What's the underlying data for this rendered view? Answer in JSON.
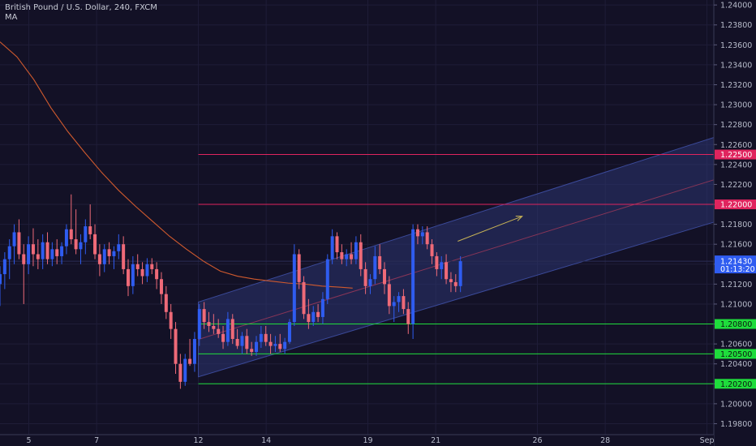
{
  "header": {
    "symbol": "British Pound / U.S. Dollar, 240, FXCM",
    "indicator": "MA"
  },
  "colors": {
    "background": "#131126",
    "grid": "#1f1d38",
    "bull": "#2f5cf0",
    "bear": "#ee6a78",
    "ma": "#d05a2e",
    "resistance": "#e0245e",
    "support": "#1fdc3c",
    "channel_fill": "#2c3470",
    "axis_text": "#b8bccb",
    "crosshair": "#2a2d55",
    "arrow": "#c9b456"
  },
  "chart_data": {
    "type": "candlestick",
    "x_labels": [
      "5",
      "7",
      "12",
      "14",
      "19",
      "21",
      "26",
      "28",
      "Sep"
    ],
    "y_ticks": [
      "1.24000",
      "1.23800",
      "1.23600",
      "1.23400",
      "1.23200",
      "1.23000",
      "1.22800",
      "1.22600",
      "1.22400",
      "1.22200",
      "1.22000",
      "1.21800",
      "1.21600",
      "1.21400",
      "1.21200",
      "1.21000",
      "1.20800",
      "1.20600",
      "1.20400",
      "1.20200",
      "1.20000",
      "1.19800"
    ],
    "ylim": [
      1.1969,
      1.2405
    ],
    "horizontal_levels": [
      {
        "price": 1.225,
        "label": "1.22500",
        "kind": "resistance"
      },
      {
        "price": 1.22,
        "label": "1.22000",
        "kind": "resistance"
      },
      {
        "price": 1.208,
        "label": "1.20800",
        "kind": "support"
      },
      {
        "price": 1.205,
        "label": "1.20500",
        "kind": "support"
      },
      {
        "price": 1.202,
        "label": "1.20200",
        "kind": "support"
      }
    ],
    "current_price": {
      "price": 1.2143,
      "label": "1.21430",
      "countdown": "01:13:20"
    },
    "channel": {
      "start": {
        "date": "12",
        "upper": 1.2102,
        "lower": 1.2027
      },
      "end": {
        "date": "Sep",
        "upper": 1.2268,
        "lower": 1.2183
      }
    },
    "ma": [
      {
        "d": 0,
        "v": 1.2363
      },
      {
        "d": 0.5,
        "v": 1.2348
      },
      {
        "d": 1,
        "v": 1.2325
      },
      {
        "d": 1.5,
        "v": 1.2297
      },
      {
        "d": 2,
        "v": 1.2273
      },
      {
        "d": 2.5,
        "v": 1.2252
      },
      {
        "d": 3,
        "v": 1.2232
      },
      {
        "d": 3.5,
        "v": 1.2214
      },
      {
        "d": 4,
        "v": 1.2198
      },
      {
        "d": 4.5,
        "v": 1.2183
      },
      {
        "d": 5,
        "v": 1.2168
      },
      {
        "d": 5.5,
        "v": 1.2155
      },
      {
        "d": 6,
        "v": 1.2143
      },
      {
        "d": 6.5,
        "v": 1.2133
      },
      {
        "d": 7,
        "v": 1.2128
      },
      {
        "d": 7.5,
        "v": 1.2125
      },
      {
        "d": 8,
        "v": 1.2123
      },
      {
        "d": 8.5,
        "v": 1.2121
      },
      {
        "d": 9,
        "v": 1.212
      },
      {
        "d": 9.5,
        "v": 1.2118
      },
      {
        "d": 10,
        "v": 1.2117
      },
      {
        "d": 10.4,
        "v": 1.2116
      }
    ],
    "candles": [
      {
        "d": 0.0,
        "o": 1.212,
        "h": 1.2138,
        "l": 1.2098,
        "c": 1.213
      },
      {
        "d": 0.14,
        "o": 1.213,
        "h": 1.2152,
        "l": 1.2115,
        "c": 1.2145
      },
      {
        "d": 0.28,
        "o": 1.2145,
        "h": 1.2165,
        "l": 1.2125,
        "c": 1.2158
      },
      {
        "d": 0.42,
        "o": 1.2158,
        "h": 1.218,
        "l": 1.214,
        "c": 1.2172
      },
      {
        "d": 0.56,
        "o": 1.2172,
        "h": 1.2185,
        "l": 1.2145,
        "c": 1.215
      },
      {
        "d": 0.7,
        "o": 1.215,
        "h": 1.216,
        "l": 1.21,
        "c": 1.214
      },
      {
        "d": 0.84,
        "o": 1.214,
        "h": 1.2168,
        "l": 1.213,
        "c": 1.216
      },
      {
        "d": 0.98,
        "o": 1.216,
        "h": 1.2176,
        "l": 1.2138,
        "c": 1.215
      },
      {
        "d": 1.12,
        "o": 1.215,
        "h": 1.2165,
        "l": 1.2135,
        "c": 1.2145
      },
      {
        "d": 1.26,
        "o": 1.2145,
        "h": 1.217,
        "l": 1.2135,
        "c": 1.2162
      },
      {
        "d": 1.4,
        "o": 1.2162,
        "h": 1.2172,
        "l": 1.214,
        "c": 1.2145
      },
      {
        "d": 1.54,
        "o": 1.2145,
        "h": 1.2162,
        "l": 1.2138,
        "c": 1.2155
      },
      {
        "d": 1.68,
        "o": 1.2155,
        "h": 1.2165,
        "l": 1.214,
        "c": 1.2148
      },
      {
        "d": 1.82,
        "o": 1.2148,
        "h": 1.2162,
        "l": 1.214,
        "c": 1.2158
      },
      {
        "d": 1.96,
        "o": 1.2158,
        "h": 1.218,
        "l": 1.215,
        "c": 1.2175
      },
      {
        "d": 2.1,
        "o": 1.2175,
        "h": 1.221,
        "l": 1.216,
        "c": 1.2165
      },
      {
        "d": 2.24,
        "o": 1.2165,
        "h": 1.2195,
        "l": 1.215,
        "c": 1.2155
      },
      {
        "d": 2.38,
        "o": 1.2155,
        "h": 1.217,
        "l": 1.214,
        "c": 1.2162
      },
      {
        "d": 2.52,
        "o": 1.2162,
        "h": 1.2185,
        "l": 1.215,
        "c": 1.2178
      },
      {
        "d": 2.66,
        "o": 1.2178,
        "h": 1.22,
        "l": 1.2165,
        "c": 1.217
      },
      {
        "d": 2.8,
        "o": 1.217,
        "h": 1.218,
        "l": 1.2145,
        "c": 1.215
      },
      {
        "d": 2.94,
        "o": 1.215,
        "h": 1.216,
        "l": 1.2128,
        "c": 1.214
      },
      {
        "d": 3.08,
        "o": 1.214,
        "h": 1.216,
        "l": 1.2132,
        "c": 1.2155
      },
      {
        "d": 3.22,
        "o": 1.2155,
        "h": 1.2162,
        "l": 1.214,
        "c": 1.2148
      },
      {
        "d": 3.36,
        "o": 1.2148,
        "h": 1.2158,
        "l": 1.2135,
        "c": 1.2153
      },
      {
        "d": 3.5,
        "o": 1.2153,
        "h": 1.217,
        "l": 1.2145,
        "c": 1.216
      },
      {
        "d": 3.64,
        "o": 1.216,
        "h": 1.2168,
        "l": 1.213,
        "c": 1.2135
      },
      {
        "d": 3.78,
        "o": 1.2135,
        "h": 1.2145,
        "l": 1.2108,
        "c": 1.2118
      },
      {
        "d": 3.92,
        "o": 1.2118,
        "h": 1.2148,
        "l": 1.211,
        "c": 1.214
      },
      {
        "d": 4.06,
        "o": 1.214,
        "h": 1.215,
        "l": 1.2128,
        "c": 1.2135
      },
      {
        "d": 4.2,
        "o": 1.2135,
        "h": 1.2142,
        "l": 1.212,
        "c": 1.2128
      },
      {
        "d": 4.34,
        "o": 1.2128,
        "h": 1.2146,
        "l": 1.2122,
        "c": 1.214
      },
      {
        "d": 4.48,
        "o": 1.214,
        "h": 1.2146,
        "l": 1.213,
        "c": 1.2135
      },
      {
        "d": 4.62,
        "o": 1.2135,
        "h": 1.2142,
        "l": 1.2115,
        "c": 1.2125
      },
      {
        "d": 4.76,
        "o": 1.2125,
        "h": 1.2132,
        "l": 1.21,
        "c": 1.211
      },
      {
        "d": 4.9,
        "o": 1.211,
        "h": 1.2118,
        "l": 1.2085,
        "c": 1.2092
      },
      {
        "d": 5.04,
        "o": 1.2092,
        "h": 1.21,
        "l": 1.2065,
        "c": 1.2075
      },
      {
        "d": 5.18,
        "o": 1.2075,
        "h": 1.2082,
        "l": 1.203,
        "c": 1.204
      },
      {
        "d": 5.32,
        "o": 1.204,
        "h": 1.205,
        "l": 1.2015,
        "c": 1.2022
      },
      {
        "d": 5.46,
        "o": 1.2022,
        "h": 1.205,
        "l": 1.2018,
        "c": 1.2045
      },
      {
        "d": 5.6,
        "o": 1.2045,
        "h": 1.2065,
        "l": 1.2038,
        "c": 1.204
      },
      {
        "d": 5.74,
        "o": 1.204,
        "h": 1.2072,
        "l": 1.2032,
        "c": 1.2065
      },
      {
        "d": 5.88,
        "o": 1.2065,
        "h": 1.21,
        "l": 1.2058,
        "c": 1.2095
      },
      {
        "d": 6.02,
        "o": 1.2095,
        "h": 1.2102,
        "l": 1.2075,
        "c": 1.2082
      },
      {
        "d": 6.16,
        "o": 1.2082,
        "h": 1.2092,
        "l": 1.2072,
        "c": 1.2078
      },
      {
        "d": 6.3,
        "o": 1.2078,
        "h": 1.209,
        "l": 1.207,
        "c": 1.2075
      },
      {
        "d": 6.44,
        "o": 1.2075,
        "h": 1.2085,
        "l": 1.2066,
        "c": 1.207
      },
      {
        "d": 6.58,
        "o": 1.207,
        "h": 1.2078,
        "l": 1.2055,
        "c": 1.2062
      },
      {
        "d": 6.72,
        "o": 1.2062,
        "h": 1.2092,
        "l": 1.2058,
        "c": 1.2085
      },
      {
        "d": 6.86,
        "o": 1.2085,
        "h": 1.209,
        "l": 1.206,
        "c": 1.2065
      },
      {
        "d": 7.0,
        "o": 1.2065,
        "h": 1.2075,
        "l": 1.2055,
        "c": 1.2058
      },
      {
        "d": 7.14,
        "o": 1.2058,
        "h": 1.2072,
        "l": 1.205,
        "c": 1.2068
      },
      {
        "d": 7.28,
        "o": 1.2068,
        "h": 1.2075,
        "l": 1.205,
        "c": 1.2055
      },
      {
        "d": 7.42,
        "o": 1.2055,
        "h": 1.2062,
        "l": 1.2048,
        "c": 1.2052
      },
      {
        "d": 7.56,
        "o": 1.2052,
        "h": 1.2068,
        "l": 1.2048,
        "c": 1.2062
      },
      {
        "d": 7.7,
        "o": 1.2062,
        "h": 1.2078,
        "l": 1.2056,
        "c": 1.207
      },
      {
        "d": 7.84,
        "o": 1.207,
        "h": 1.2078,
        "l": 1.2058,
        "c": 1.2062
      },
      {
        "d": 7.98,
        "o": 1.2062,
        "h": 1.207,
        "l": 1.205,
        "c": 1.2058
      },
      {
        "d": 8.12,
        "o": 1.2058,
        "h": 1.2068,
        "l": 1.2052,
        "c": 1.206
      },
      {
        "d": 8.26,
        "o": 1.206,
        "h": 1.207,
        "l": 1.2052,
        "c": 1.2055
      },
      {
        "d": 8.4,
        "o": 1.2055,
        "h": 1.2066,
        "l": 1.205,
        "c": 1.2062
      },
      {
        "d": 8.54,
        "o": 1.2062,
        "h": 1.2085,
        "l": 1.206,
        "c": 1.2082
      },
      {
        "d": 8.68,
        "o": 1.2082,
        "h": 1.216,
        "l": 1.2078,
        "c": 1.215
      },
      {
        "d": 8.82,
        "o": 1.215,
        "h": 1.2155,
        "l": 1.2115,
        "c": 1.2122
      },
      {
        "d": 8.96,
        "o": 1.2122,
        "h": 1.2128,
        "l": 1.2085,
        "c": 1.209
      },
      {
        "d": 9.1,
        "o": 1.209,
        "h": 1.2105,
        "l": 1.2075,
        "c": 1.2082
      },
      {
        "d": 9.24,
        "o": 1.2082,
        "h": 1.2098,
        "l": 1.2078,
        "c": 1.2092
      },
      {
        "d": 9.38,
        "o": 1.2092,
        "h": 1.21,
        "l": 1.2082,
        "c": 1.2087
      },
      {
        "d": 9.52,
        "o": 1.2087,
        "h": 1.2112,
        "l": 1.208,
        "c": 1.2105
      },
      {
        "d": 9.66,
        "o": 1.2105,
        "h": 1.215,
        "l": 1.21,
        "c": 1.2145
      },
      {
        "d": 9.8,
        "o": 1.2145,
        "h": 1.2175,
        "l": 1.214,
        "c": 1.2168
      },
      {
        "d": 9.94,
        "o": 1.2168,
        "h": 1.2172,
        "l": 1.2145,
        "c": 1.2152
      },
      {
        "d": 10.08,
        "o": 1.2152,
        "h": 1.216,
        "l": 1.214,
        "c": 1.2145
      },
      {
        "d": 10.22,
        "o": 1.2145,
        "h": 1.2155,
        "l": 1.2138,
        "c": 1.215
      },
      {
        "d": 10.36,
        "o": 1.215,
        "h": 1.2162,
        "l": 1.214,
        "c": 1.2145
      },
      {
        "d": 10.5,
        "o": 1.2145,
        "h": 1.2168,
        "l": 1.214,
        "c": 1.2162
      },
      {
        "d": 10.64,
        "o": 1.2162,
        "h": 1.217,
        "l": 1.2128,
        "c": 1.2135
      },
      {
        "d": 10.78,
        "o": 1.2135,
        "h": 1.2142,
        "l": 1.211,
        "c": 1.2118
      },
      {
        "d": 10.92,
        "o": 1.2118,
        "h": 1.213,
        "l": 1.211,
        "c": 1.2125
      },
      {
        "d": 11.06,
        "o": 1.2125,
        "h": 1.2158,
        "l": 1.212,
        "c": 1.2148
      },
      {
        "d": 11.2,
        "o": 1.2148,
        "h": 1.216,
        "l": 1.213,
        "c": 1.2135
      },
      {
        "d": 11.34,
        "o": 1.2135,
        "h": 1.2142,
        "l": 1.211,
        "c": 1.212
      },
      {
        "d": 11.48,
        "o": 1.212,
        "h": 1.2128,
        "l": 1.209,
        "c": 1.2098
      },
      {
        "d": 11.62,
        "o": 1.2098,
        "h": 1.2108,
        "l": 1.2082,
        "c": 1.2102
      },
      {
        "d": 11.76,
        "o": 1.2102,
        "h": 1.2112,
        "l": 1.2092,
        "c": 1.2108
      },
      {
        "d": 11.9,
        "o": 1.2108,
        "h": 1.2115,
        "l": 1.209,
        "c": 1.2095
      },
      {
        "d": 12.04,
        "o": 1.2095,
        "h": 1.2102,
        "l": 1.207,
        "c": 1.208
      },
      {
        "d": 12.18,
        "o": 1.208,
        "h": 1.218,
        "l": 1.2065,
        "c": 1.2175
      },
      {
        "d": 12.32,
        "o": 1.2175,
        "h": 1.218,
        "l": 1.216,
        "c": 1.2168
      },
      {
        "d": 12.46,
        "o": 1.2168,
        "h": 1.2178,
        "l": 1.216,
        "c": 1.2172
      },
      {
        "d": 12.6,
        "o": 1.2172,
        "h": 1.2178,
        "l": 1.2155,
        "c": 1.216
      },
      {
        "d": 12.74,
        "o": 1.216,
        "h": 1.2165,
        "l": 1.214,
        "c": 1.2148
      },
      {
        "d": 12.88,
        "o": 1.2148,
        "h": 1.2152,
        "l": 1.2128,
        "c": 1.2135
      },
      {
        "d": 13.02,
        "o": 1.2135,
        "h": 1.2148,
        "l": 1.2125,
        "c": 1.2142
      },
      {
        "d": 13.16,
        "o": 1.2142,
        "h": 1.215,
        "l": 1.212,
        "c": 1.2125
      },
      {
        "d": 13.3,
        "o": 1.2125,
        "h": 1.2132,
        "l": 1.2112,
        "c": 1.2122
      },
      {
        "d": 13.44,
        "o": 1.2122,
        "h": 1.213,
        "l": 1.2112,
        "c": 1.2118
      },
      {
        "d": 13.58,
        "o": 1.2118,
        "h": 1.2148,
        "l": 1.2112,
        "c": 1.2143
      }
    ]
  }
}
